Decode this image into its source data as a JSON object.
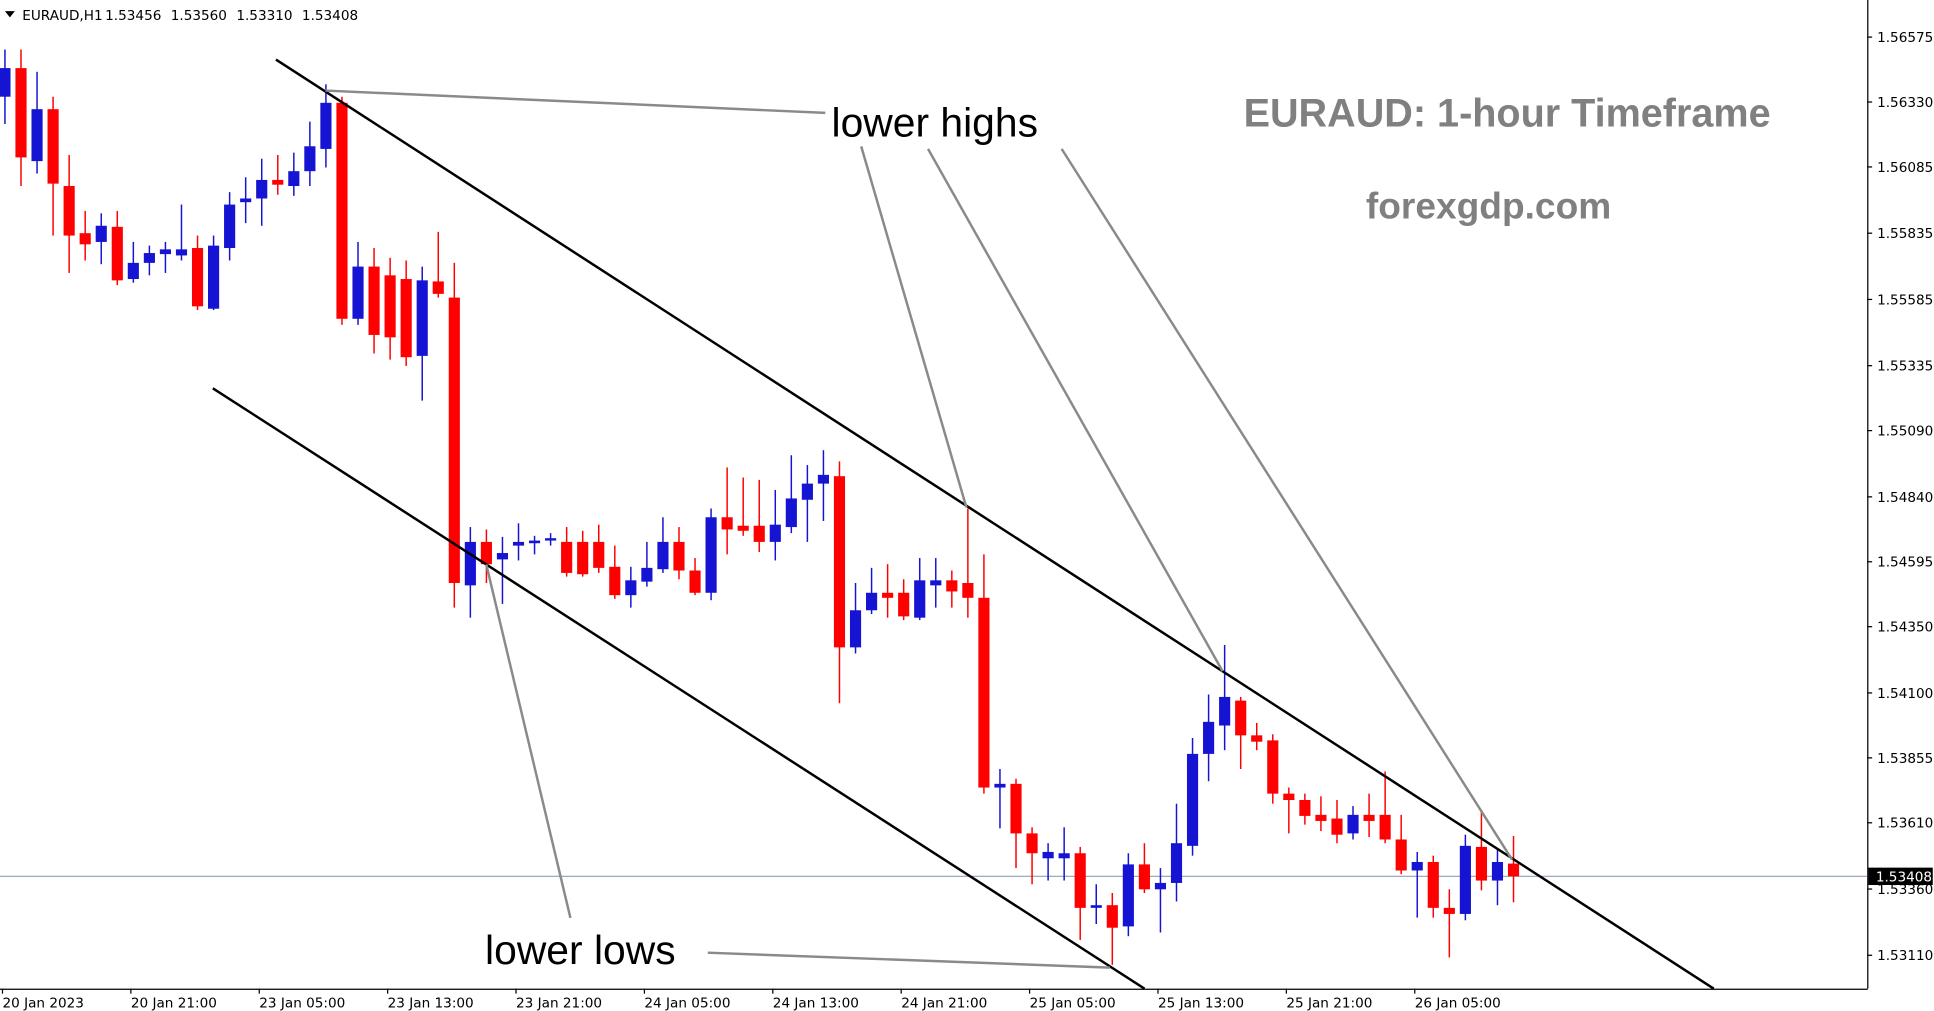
{
  "header": {
    "symbol": "EURAUD,H1",
    "ohlc": [
      "1.53456",
      "1.53560",
      "1.53310",
      "1.53408"
    ]
  },
  "chart_data": {
    "type": "candlestick",
    "title": "EURAUD: 1-hour Timeframe",
    "subtitle": "forexgdp.com",
    "annotations": [
      "lower highs",
      "lower lows"
    ],
    "colors": {
      "up": "#1414d2",
      "down": "#ff0000"
    },
    "categories": [
      "20 Jan 2023",
      null,
      null,
      null,
      null,
      null,
      null,
      null,
      "20 Jan 21:00",
      null,
      null,
      null,
      null,
      null,
      null,
      null,
      "23 Jan 05:00",
      null,
      null,
      null,
      null,
      null,
      null,
      null,
      "23 Jan 13:00",
      null,
      null,
      null,
      null,
      null,
      null,
      null,
      "23 Jan 21:00",
      null,
      null,
      null,
      null,
      null,
      null,
      null,
      "24 Jan 05:00",
      null,
      null,
      null,
      null,
      null,
      null,
      null,
      "24 Jan 13:00",
      null,
      null,
      null,
      null,
      null,
      null,
      null,
      "24 Jan 21:00",
      null,
      null,
      null,
      null,
      null,
      null,
      null,
      "25 Jan 05:00",
      null,
      null,
      null,
      null,
      null,
      null,
      null,
      "25 Jan 13:00",
      null,
      null,
      null,
      null,
      null,
      null,
      null,
      "25 Jan 21:00",
      null,
      null,
      null,
      null,
      null,
      null,
      null,
      "26 Jan 05:00",
      null,
      null,
      null,
      null,
      null,
      null
    ],
    "open": [
      1.5635,
      1.56458,
      1.56107,
      1.56303,
      1.56013,
      1.55835,
      1.55802,
      1.55859,
      1.55662,
      1.55723,
      1.55756,
      1.55751,
      1.55779,
      1.5555,
      1.55779,
      1.55952,
      1.55966,
      1.56036,
      1.56013,
      1.56069,
      1.56153,
      1.56327,
      1.55512,
      1.55709,
      1.55676,
      1.55662,
      1.55372,
      1.55653,
      1.55592,
      1.54506,
      1.5467,
      1.54604,
      1.54656,
      1.54665,
      1.54675,
      1.5467,
      1.5467,
      1.5467,
      1.54576,
      1.54469,
      1.5452,
      1.54567,
      1.5467,
      1.54562,
      1.54478,
      1.54763,
      1.54731,
      1.54731,
      1.5467,
      1.54726,
      1.54829,
      1.5489,
      1.54918,
      1.54272,
      1.54412,
      1.54478,
      1.54478,
      1.54384,
      1.54506,
      1.54525,
      1.54515,
      1.54459,
      1.53743,
      1.53757,
      1.5357,
      1.53476,
      1.53476,
      1.53495,
      1.53289,
      1.53299,
      1.53219,
      1.53453,
      1.53359,
      1.53383,
      1.53523,
      1.5387,
      1.53977,
      1.54071,
      1.5394,
      1.53921,
      1.5372,
      1.53696,
      1.5364,
      1.53626,
      1.5357,
      1.5364,
      1.5364,
      1.53547,
      1.5343,
      1.53462,
      1.53289,
      1.53266,
      1.53519,
      1.53392,
      1.53456
    ],
    "high": [
      1.56528,
      1.56528,
      1.56444,
      1.5635,
      1.5613,
      1.55919,
      1.5591,
      1.55919,
      1.55802,
      1.55788,
      1.55802,
      1.55943,
      1.55826,
      1.55826,
      1.5599,
      1.56046,
      1.56116,
      1.5613,
      1.56139,
      1.56256,
      1.56397,
      1.5635,
      1.55802,
      1.55779,
      1.55742,
      1.55732,
      1.55709,
      1.5584,
      1.55723,
      1.54726,
      1.54717,
      1.54689,
      1.5474,
      1.54693,
      1.54703,
      1.54726,
      1.54712,
      1.54735,
      1.54656,
      1.54576,
      1.5467,
      1.54763,
      1.54726,
      1.54609,
      1.54796,
      1.54951,
      1.54913,
      1.54904,
      1.54866,
      1.54997,
      1.5496,
      1.55016,
      1.54974,
      1.54515,
      1.54572,
      1.54586,
      1.54529,
      1.54609,
      1.54609,
      1.54562,
      1.54796,
      1.54623,
      1.53813,
      1.53776,
      1.53593,
      1.53533,
      1.53593,
      1.53519,
      1.53378,
      1.53345,
      1.53495,
      1.53533,
      1.53439,
      1.53682,
      1.5393,
      1.54094,
      1.54281,
      1.54085,
      1.53987,
      1.53944,
      1.53743,
      1.5372,
      1.5371,
      1.53696,
      1.53673,
      1.5372,
      1.53804,
      1.5364,
      1.535,
      1.53486,
      1.53359,
      1.53565,
      1.53659,
      1.53509,
      1.5356
    ],
    "low": [
      1.56247,
      1.56013,
      1.5606,
      1.55826,
      1.55685,
      1.55732,
      1.55718,
      1.55639,
      1.55648,
      1.55676,
      1.55685,
      1.55732,
      1.55545,
      1.55545,
      1.55732,
      1.55873,
      1.55863,
      1.5598,
      1.55976,
      1.56013,
      1.56083,
      1.55489,
      1.55489,
      1.55381,
      1.55358,
      1.55334,
      1.55203,
      1.55592,
      1.54422,
      1.54384,
      1.54515,
      1.54436,
      1.546,
      1.54623,
      1.54656,
      1.54539,
      1.54539,
      1.54553,
      1.54455,
      1.54422,
      1.54501,
      1.54553,
      1.54529,
      1.54469,
      1.5445,
      1.54623,
      1.54693,
      1.54632,
      1.546,
      1.54703,
      1.5467,
      1.54749,
      1.54061,
      1.54249,
      1.54398,
      1.54384,
      1.54375,
      1.54375,
      1.54422,
      1.54422,
      1.54384,
      1.5372,
      1.53589,
      1.53439,
      1.53378,
      1.53392,
      1.53392,
      1.53168,
      1.53228,
      1.53074,
      1.53182,
      1.53345,
      1.53196,
      1.53313,
      1.53486,
      1.53767,
      1.53884,
      1.53813,
      1.53884,
      1.53682,
      1.5357,
      1.53603,
      1.53579,
      1.53533,
      1.53547,
      1.53556,
      1.53533,
      1.53416,
      1.53252,
      1.53252,
      1.53102,
      1.53242,
      1.53355,
      1.53299,
      1.5331
    ],
    "close": [
      1.56458,
      1.56121,
      1.56303,
      1.56022,
      1.55826,
      1.55793,
      1.55863,
      1.55657,
      1.55723,
      1.5576,
      1.55774,
      1.55774,
      1.55559,
      1.55788,
      1.55943,
      1.55966,
      1.56036,
      1.56018,
      1.56069,
      1.56163,
      1.56327,
      1.55512,
      1.55709,
      1.55451,
      1.55442,
      1.55367,
      1.55657,
      1.55606,
      1.54515,
      1.5467,
      1.54586,
      1.54628,
      1.5467,
      1.54675,
      1.54684,
      1.54553,
      1.54548,
      1.54572,
      1.54469,
      1.54525,
      1.54572,
      1.5467,
      1.54562,
      1.54478,
      1.54763,
      1.54717,
      1.54712,
      1.5467,
      1.54735,
      1.54834,
      1.5489,
      1.54923,
      1.54272,
      1.54412,
      1.54478,
      1.54459,
      1.54389,
      1.54525,
      1.54525,
      1.54483,
      1.54459,
      1.53743,
      1.53757,
      1.5357,
      1.53495,
      1.535,
      1.53495,
      1.53289,
      1.53299,
      1.53214,
      1.53453,
      1.53359,
      1.53383,
      1.53533,
      1.5387,
      1.53991,
      1.54085,
      1.5394,
      1.53916,
      1.5372,
      1.53696,
      1.53636,
      1.53617,
      1.53565,
      1.5364,
      1.53617,
      1.53547,
      1.5343,
      1.53462,
      1.53289,
      1.53266,
      1.53523,
      1.53392,
      1.53462,
      1.53408
    ],
    "last_price": {
      "value": 1.53408,
      "label": "1.53408"
    },
    "ylim": [
      1.52984,
      1.56715
    ],
    "yticks": [
      1.56575,
      {
        "value": 1.5633,
        "label": "1.56330"
      },
      1.56085,
      1.55835,
      1.55585,
      1.55335,
      {
        "value": 1.5509,
        "label": "1.55090"
      },
      {
        "value": 1.5484,
        "label": "1.54840"
      },
      1.54595,
      {
        "value": 1.5435,
        "label": "1.54350"
      },
      {
        "value": 1.541,
        "label": "1.54100"
      },
      1.53855,
      {
        "value": 1.5361,
        "label": "1.53610"
      },
      {
        "value": 1.5336,
        "label": "1.53360"
      },
      {
        "value": 1.5311,
        "label": "1.53110"
      }
    ]
  }
}
